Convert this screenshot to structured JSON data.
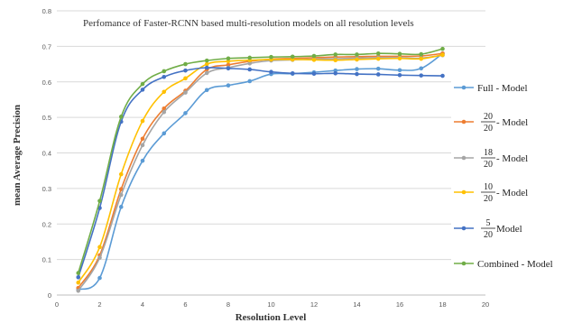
{
  "chart_data": {
    "type": "line",
    "title": "Perfomance of Faster-RCNN based multi-resolution models on all resolution levels",
    "xlabel": "Resolution Level",
    "ylabel": "mean Average Precision",
    "xlim": [
      0,
      20
    ],
    "ylim": [
      0,
      0.8
    ],
    "xticks": [
      0,
      2,
      4,
      6,
      8,
      10,
      12,
      14,
      16,
      18,
      20
    ],
    "yticks": [
      0,
      0.1,
      0.2,
      0.3,
      0.4,
      0.5,
      0.6,
      0.7,
      0.8
    ],
    "grid": true,
    "legend_position": "right",
    "x": [
      1,
      2,
      3,
      4,
      5,
      6,
      7,
      8,
      9,
      10,
      11,
      12,
      13,
      14,
      15,
      16,
      17,
      18
    ],
    "series": [
      {
        "legend": {
          "prefix": "Full - Model",
          "numerator": "",
          "denominator": "",
          "suffix": ""
        },
        "color": "#5b9bd5",
        "values": [
          0.015,
          0.048,
          0.248,
          0.378,
          0.455,
          0.512,
          0.577,
          0.59,
          0.602,
          0.622,
          0.623,
          0.627,
          0.632,
          0.636,
          0.637,
          0.633,
          0.638,
          0.68
        ]
      },
      {
        "legend": {
          "prefix": "",
          "numerator": "20",
          "denominator": "20",
          "suffix": " - Model"
        },
        "color": "#ed7d31",
        "values": [
          0.02,
          0.112,
          0.298,
          0.44,
          0.525,
          0.575,
          0.635,
          0.648,
          0.658,
          0.664,
          0.666,
          0.668,
          0.67,
          0.671,
          0.672,
          0.672,
          0.673,
          0.68
        ]
      },
      {
        "legend": {
          "prefix": "",
          "numerator": "18",
          "denominator": "20",
          "suffix": " - Model"
        },
        "color": "#a5a5a5",
        "values": [
          0.012,
          0.105,
          0.282,
          0.422,
          0.515,
          0.57,
          0.625,
          0.64,
          0.652,
          0.66,
          0.662,
          0.664,
          0.665,
          0.667,
          0.668,
          0.668,
          0.667,
          0.675
        ]
      },
      {
        "legend": {
          "prefix": "",
          "numerator": "10",
          "denominator": "20",
          "suffix": " - Model"
        },
        "color": "#ffc000",
        "values": [
          0.035,
          0.135,
          0.34,
          0.49,
          0.572,
          0.61,
          0.65,
          0.658,
          0.661,
          0.663,
          0.663,
          0.662,
          0.661,
          0.663,
          0.665,
          0.666,
          0.665,
          0.676
        ]
      },
      {
        "legend": {
          "prefix": "",
          "numerator": "5",
          "denominator": "20",
          "suffix": " Model"
        },
        "color": "#4472c4",
        "values": [
          0.05,
          0.245,
          0.488,
          0.578,
          0.614,
          0.632,
          0.64,
          0.638,
          0.635,
          0.628,
          0.624,
          0.623,
          0.624,
          0.622,
          0.621,
          0.619,
          0.618,
          0.617
        ]
      },
      {
        "legend": {
          "prefix": "Combined - Model",
          "numerator": "",
          "denominator": "",
          "suffix": ""
        },
        "color": "#70ad47",
        "values": [
          0.062,
          0.265,
          0.502,
          0.594,
          0.63,
          0.65,
          0.66,
          0.666,
          0.668,
          0.67,
          0.671,
          0.673,
          0.677,
          0.677,
          0.68,
          0.679,
          0.678,
          0.693
        ]
      }
    ]
  }
}
